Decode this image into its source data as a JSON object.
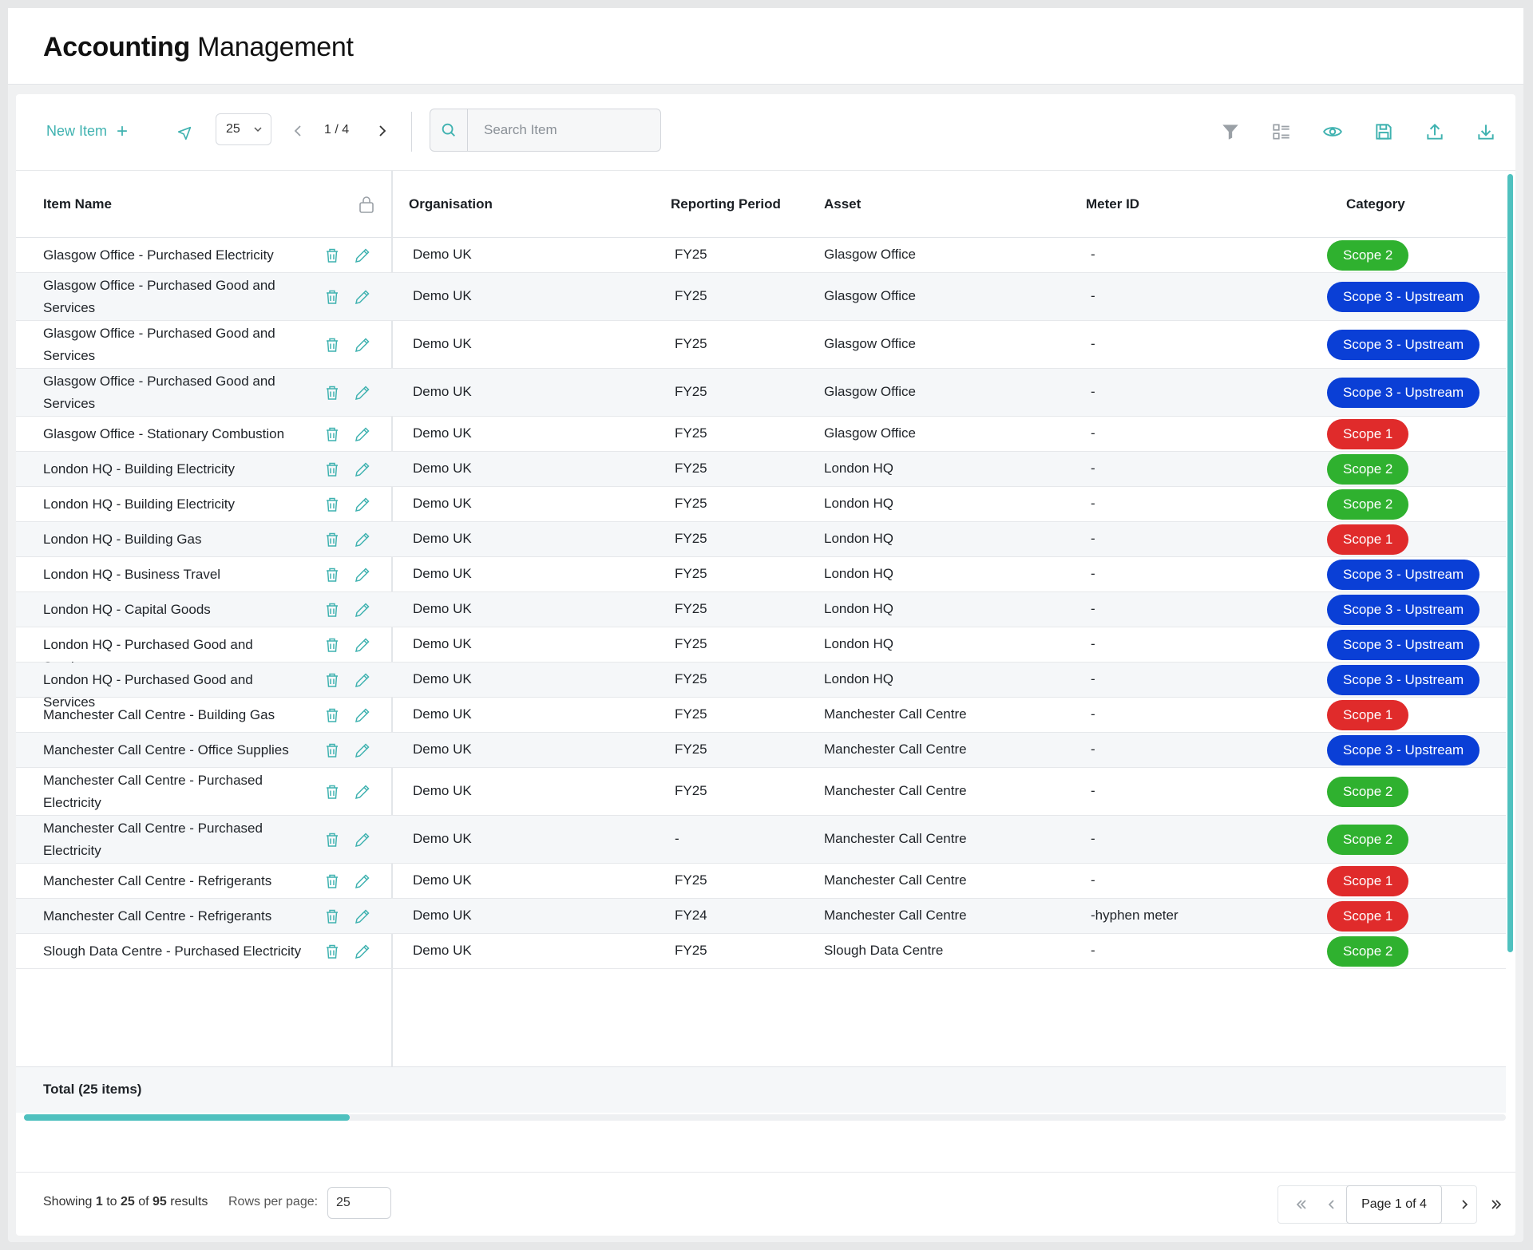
{
  "app": {
    "title_bold": "Accounting",
    "title_light": "Management"
  },
  "toolbar": {
    "new_item_label": "New Item",
    "rows_select_value": "25",
    "page_indicator": "1 / 4",
    "search_placeholder": "Search Item",
    "icons": [
      "cursor-icon",
      "filter-icon",
      "columns-icon",
      "eye-icon",
      "save-icon",
      "upload-icon",
      "download-icon"
    ]
  },
  "table": {
    "columns": [
      "Item Name",
      "Organisation",
      "Reporting Period",
      "Asset",
      "Meter ID",
      "Category"
    ],
    "rows": [
      {
        "name": "Glasgow Office - Purchased Electricity",
        "org": "Demo UK",
        "period": "FY25",
        "asset": "Glasgow Office",
        "meter": "-",
        "category": "Scope 2"
      },
      {
        "name": "Glasgow Office - Purchased Good and Services",
        "org": "Demo UK",
        "period": "FY25",
        "asset": "Glasgow Office",
        "meter": "-",
        "category": "Scope 3 - Upstream"
      },
      {
        "name": "Glasgow Office - Purchased Good and Services",
        "org": "Demo UK",
        "period": "FY25",
        "asset": "Glasgow Office",
        "meter": "-",
        "category": "Scope 3 - Upstream"
      },
      {
        "name": "Glasgow Office - Purchased Good and Services",
        "org": "Demo UK",
        "period": "FY25",
        "asset": "Glasgow Office",
        "meter": "-",
        "category": "Scope 3 - Upstream"
      },
      {
        "name": "Glasgow Office - Stationary Combustion",
        "org": "Demo UK",
        "period": "FY25",
        "asset": "Glasgow Office",
        "meter": "-",
        "category": "Scope 1"
      },
      {
        "name": "London HQ - Building Electricity",
        "org": "Demo UK",
        "period": "FY25",
        "asset": "London HQ",
        "meter": "-",
        "category": "Scope 2"
      },
      {
        "name": "London HQ - Building Electricity",
        "org": "Demo UK",
        "period": "FY25",
        "asset": "London HQ",
        "meter": "-",
        "category": "Scope 2"
      },
      {
        "name": "London HQ - Building Gas",
        "org": "Demo UK",
        "period": "FY25",
        "asset": "London HQ",
        "meter": "-",
        "category": "Scope 1"
      },
      {
        "name": "London HQ - Business Travel",
        "org": "Demo UK",
        "period": "FY25",
        "asset": "London HQ",
        "meter": "-",
        "category": "Scope 3 - Upstream"
      },
      {
        "name": "London HQ - Capital Goods",
        "org": "Demo UK",
        "period": "FY25",
        "asset": "London HQ",
        "meter": "-",
        "category": "Scope 3 - Upstream"
      },
      {
        "name": "London HQ - Purchased Good and Services",
        "org": "Demo UK",
        "period": "FY25",
        "asset": "London HQ",
        "meter": "-",
        "category": "Scope 3 - Upstream"
      },
      {
        "name": "London HQ - Purchased Good and Services",
        "org": "Demo UK",
        "period": "FY25",
        "asset": "London HQ",
        "meter": "-",
        "category": "Scope 3 - Upstream"
      },
      {
        "name": "Manchester Call Centre - Building Gas",
        "org": "Demo UK",
        "period": "FY25",
        "asset": "Manchester Call Centre",
        "meter": "-",
        "category": "Scope 1"
      },
      {
        "name": "Manchester Call Centre - Office Supplies",
        "org": "Demo UK",
        "period": "FY25",
        "asset": "Manchester Call Centre",
        "meter": "-",
        "category": "Scope 3 - Upstream"
      },
      {
        "name": "Manchester Call Centre - Purchased Electricity",
        "org": "Demo UK",
        "period": "FY25",
        "asset": "Manchester Call Centre",
        "meter": "-",
        "category": "Scope 2"
      },
      {
        "name": "Manchester Call Centre - Purchased Electricity",
        "org": "Demo UK",
        "period": "-",
        "asset": "Manchester Call Centre",
        "meter": "-",
        "category": "Scope 2"
      },
      {
        "name": "Manchester Call Centre - Refrigerants",
        "org": "Demo UK",
        "period": "FY25",
        "asset": "Manchester Call Centre",
        "meter": "-",
        "category": "Scope 1"
      },
      {
        "name": "Manchester Call Centre - Refrigerants",
        "org": "Demo UK",
        "period": "FY24",
        "asset": "Manchester Call Centre",
        "meter": "-hyphen meter",
        "category": "Scope 1"
      },
      {
        "name": "Slough Data Centre - Purchased Electricity",
        "org": "Demo UK",
        "period": "FY25",
        "asset": "Slough Data Centre",
        "meter": "-",
        "category": "Scope 2"
      }
    ],
    "total_label": "Total (25 items)"
  },
  "category_colors": {
    "Scope 1": "#e02b2b",
    "Scope 2": "#2fb12f",
    "Scope 3 - Upstream": "#0a3fd6"
  },
  "accent_color": "#3fb2b0",
  "pagination": {
    "showing_prefix": "Showing",
    "from": "1",
    "to_word": "to",
    "to": "25",
    "of_word": "of",
    "total": "95",
    "results_word": "results",
    "rows_per_page_label": "Rows per page:",
    "rows_per_page_value": "25",
    "page_label": "Page 1 of 4"
  }
}
